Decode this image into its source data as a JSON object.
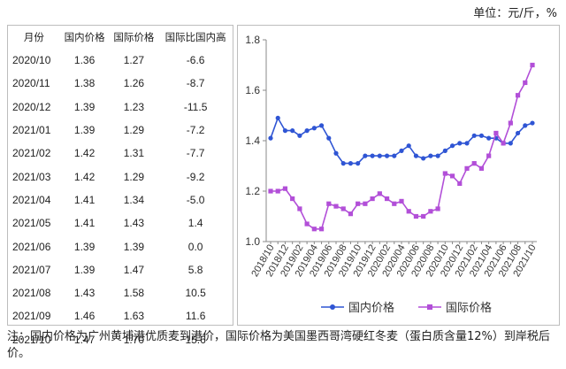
{
  "unit_label": "单位：元/斤，%",
  "table": {
    "headers": [
      "月份",
      "国内价格",
      "国际价格",
      "国际比国内高"
    ],
    "rows": [
      [
        "2020/10",
        "1.36",
        "1.27",
        "-6.6"
      ],
      [
        "2020/11",
        "1.38",
        "1.26",
        "-8.7"
      ],
      [
        "2020/12",
        "1.39",
        "1.23",
        "-11.5"
      ],
      [
        "2021/01",
        "1.39",
        "1.29",
        "-7.2"
      ],
      [
        "2021/02",
        "1.42",
        "1.31",
        "-7.7"
      ],
      [
        "2021/03",
        "1.42",
        "1.29",
        "-9.2"
      ],
      [
        "2021/04",
        "1.41",
        "1.34",
        "-5.0"
      ],
      [
        "2021/05",
        "1.41",
        "1.43",
        "1.4"
      ],
      [
        "2021/06",
        "1.39",
        "1.39",
        "0.0"
      ],
      [
        "2021/07",
        "1.39",
        "1.47",
        "5.8"
      ],
      [
        "2021/08",
        "1.43",
        "1.58",
        "10.5"
      ],
      [
        "2021/09",
        "1.46",
        "1.63",
        "11.6"
      ],
      [
        "2021/10",
        "1.47",
        "1.70",
        "15.6"
      ]
    ]
  },
  "chart_data": {
    "type": "line",
    "title": "",
    "xlabel": "",
    "ylabel": "",
    "ylim": [
      1.0,
      1.8
    ],
    "yticks": [
      "1.0",
      "1.2",
      "1.4",
      "1.6",
      "1.8"
    ],
    "x": [
      "2018/10",
      "2018/11",
      "2018/12",
      "2019/01",
      "2019/02",
      "2019/03",
      "2019/04",
      "2019/05",
      "2019/06",
      "2019/07",
      "2019/08",
      "2019/09",
      "2019/10",
      "2019/11",
      "2019/12",
      "2020/01",
      "2020/02",
      "2020/03",
      "2020/04",
      "2020/05",
      "2020/06",
      "2020/07",
      "2020/08",
      "2020/09",
      "2020/10",
      "2020/11",
      "2020/12",
      "2021/01",
      "2021/02",
      "2021/03",
      "2021/04",
      "2021/05",
      "2021/06",
      "2021/07",
      "2021/08",
      "2021/09",
      "2021/10"
    ],
    "xtick_labels": [
      "2018/10",
      "2018/12",
      "2019/02",
      "2019/04",
      "2019/06",
      "2019/08",
      "2019/10",
      "2019/12",
      "2020/02",
      "2020/04",
      "2020/06",
      "2020/08",
      "2020/10",
      "2020/12",
      "2021/02",
      "2021/04",
      "2021/06",
      "2021/08",
      "2021/10"
    ],
    "series": [
      {
        "name": "国内价格",
        "color": "#2f55d4",
        "marker": "circle",
        "values": [
          1.41,
          1.49,
          1.44,
          1.44,
          1.42,
          1.44,
          1.45,
          1.46,
          1.41,
          1.35,
          1.31,
          1.31,
          1.31,
          1.34,
          1.34,
          1.34,
          1.34,
          1.34,
          1.36,
          1.38,
          1.34,
          1.33,
          1.34,
          1.34,
          1.36,
          1.38,
          1.39,
          1.39,
          1.42,
          1.42,
          1.41,
          1.41,
          1.39,
          1.39,
          1.43,
          1.46,
          1.47
        ]
      },
      {
        "name": "国际价格",
        "color": "#b24fd8",
        "marker": "square",
        "values": [
          1.2,
          1.2,
          1.21,
          1.17,
          1.13,
          1.07,
          1.05,
          1.05,
          1.15,
          1.14,
          1.13,
          1.11,
          1.15,
          1.15,
          1.17,
          1.19,
          1.17,
          1.15,
          1.16,
          1.12,
          1.1,
          1.1,
          1.12,
          1.13,
          1.27,
          1.26,
          1.23,
          1.29,
          1.31,
          1.29,
          1.34,
          1.43,
          1.39,
          1.47,
          1.58,
          1.63,
          1.7
        ]
      }
    ],
    "legend_position": "bottom",
    "grid": false
  },
  "note": "注：国内价格为广州黄埔港优质麦到港价，国际价格为美国墨西哥湾硬红冬麦（蛋白质含量12%）到岸税后价。"
}
